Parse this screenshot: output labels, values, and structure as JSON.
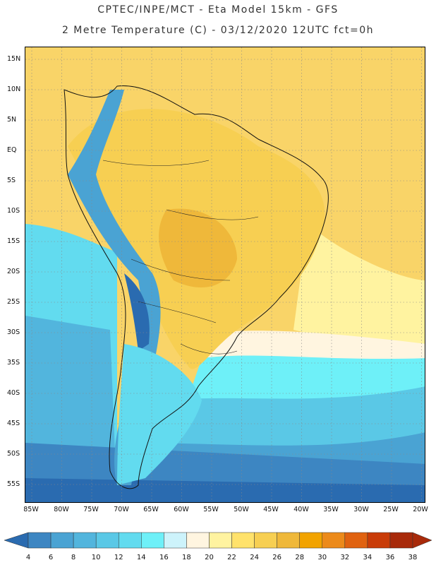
{
  "header": {
    "line1": "CPTEC/INPE/MCT -  Eta Model 15km - GFS",
    "line2": "2 Metre Temperature (C) - 03/12/2020 12UTC fct=0h"
  },
  "map": {
    "lat_labels": [
      "15N",
      "10N",
      "5N",
      "EQ",
      "5S",
      "10S",
      "15S",
      "20S",
      "25S",
      "30S",
      "35S",
      "40S",
      "45S",
      "50S",
      "55S"
    ],
    "lon_labels": [
      "85W",
      "80W",
      "75W",
      "70W",
      "65W",
      "60W",
      "55W",
      "50W",
      "45W",
      "40W",
      "35W",
      "30W",
      "25W",
      "20W"
    ]
  },
  "legend": {
    "values": [
      "4",
      "6",
      "8",
      "10",
      "12",
      "14",
      "16",
      "18",
      "20",
      "22",
      "24",
      "26",
      "28",
      "30",
      "32",
      "34",
      "36",
      "38"
    ],
    "colors": [
      "#2a6bb0",
      "#3d86c2",
      "#4aa3d3",
      "#52b5dd",
      "#5ac8e6",
      "#62dbef",
      "#6ef0f8",
      "#cdf3fb",
      "#fff5e0",
      "#fff3a0",
      "#ffe26b",
      "#f7cf52",
      "#efb83a",
      "#f2a300",
      "#ec8a1a",
      "#e06210",
      "#c93c08",
      "#a82a0a"
    ]
  }
}
